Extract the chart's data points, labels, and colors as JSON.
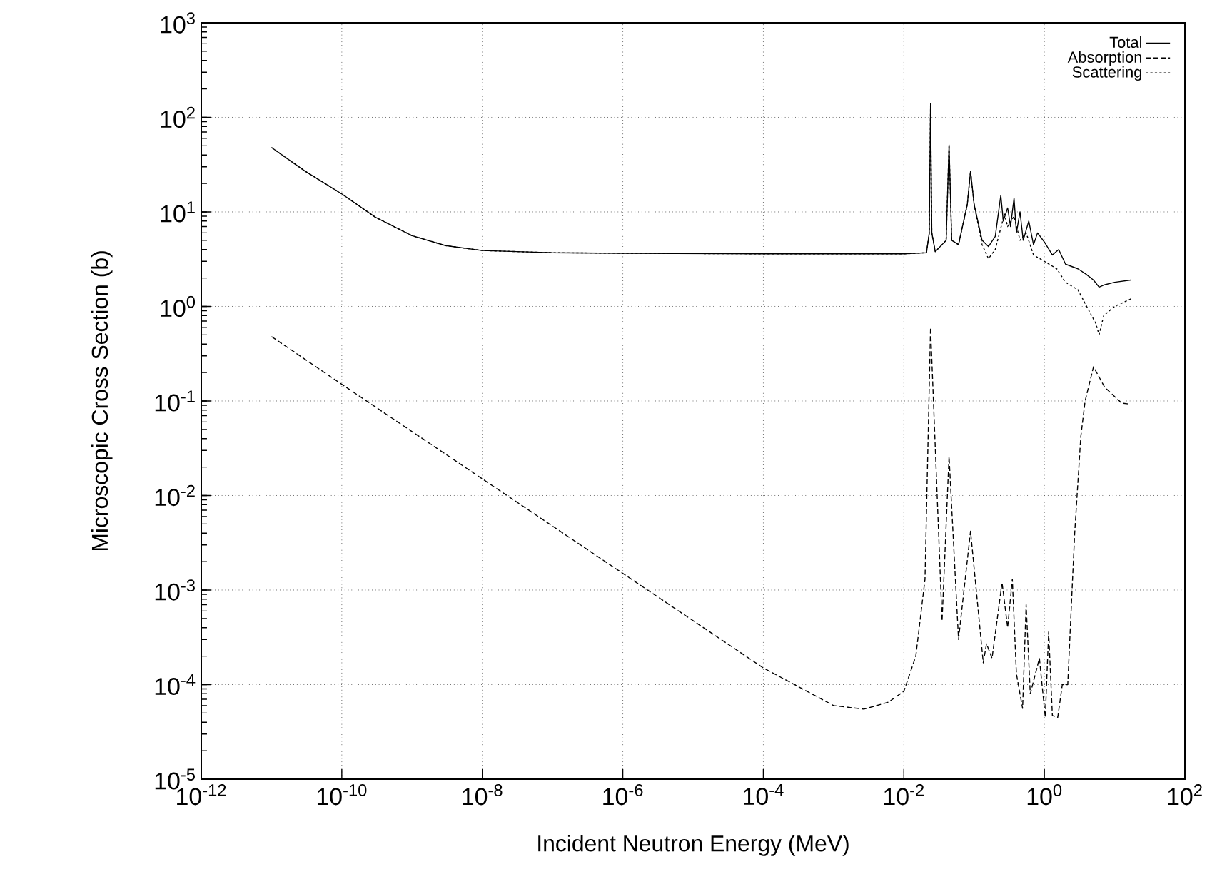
{
  "chart_data": {
    "type": "line",
    "xlabel": "Incident Neutron Energy (MeV)",
    "ylabel": "Microscopic Cross Section (b)",
    "log": "xy",
    "grid": true,
    "legend": "top right",
    "marker": "none",
    "xlim": [
      1e-12,
      100
    ],
    "ylim": [
      1e-05,
      1000
    ],
    "xticks": [
      {
        "value": 1e-12,
        "label": "10$^{-12}$"
      },
      {
        "value": 1e-10,
        "label": "10$^{-10}$"
      },
      {
        "value": 1e-08,
        "label": "10$^{-8}$"
      },
      {
        "value": 1e-06,
        "label": "10$^{-6}$"
      },
      {
        "value": 0.0001,
        "label": "10$^{-4}$"
      },
      {
        "value": 0.01,
        "label": "10$^{-2}$"
      },
      {
        "value": 1,
        "label": "10$^{0}$"
      },
      {
        "value": 100,
        "label": "10$^{2}$"
      }
    ],
    "yticks": [
      {
        "value": 1e-05,
        "label": "10$^{-5}$"
      },
      {
        "value": 0.0001,
        "label": "10$^{-4}$"
      },
      {
        "value": 0.001,
        "label": "10$^{-3}$"
      },
      {
        "value": 0.01,
        "label": "10$^{-2}$"
      },
      {
        "value": 0.1,
        "label": "10$^{-1}$"
      },
      {
        "value": 1,
        "label": "10$^{0}$"
      },
      {
        "value": 10,
        "label": "10$^{1}$"
      },
      {
        "value": 100,
        "label": "10$^{2}$"
      },
      {
        "value": 1000,
        "label": "10$^{3}$"
      }
    ],
    "series": [
      {
        "name": "Total",
        "color": "#000000",
        "line_style": "solid",
        "x": [
          1e-11,
          3e-11,
          1e-10,
          3e-10,
          1e-09,
          3e-09,
          1e-08,
          1e-07,
          1e-06,
          0.0001,
          0.01,
          0.021,
          0.023,
          0.024,
          0.025,
          0.028,
          0.04,
          0.044,
          0.048,
          0.06,
          0.08,
          0.089,
          0.1,
          0.13,
          0.16,
          0.2,
          0.24,
          0.26,
          0.3,
          0.33,
          0.37,
          0.4,
          0.45,
          0.5,
          0.6,
          0.7,
          0.8,
          1.0,
          1.3,
          1.6,
          2.0,
          3.0,
          3.9,
          5,
          6,
          7.3,
          10,
          17
        ],
        "values": [
          48,
          27,
          15.5,
          8.8,
          5.6,
          4.4,
          3.9,
          3.7,
          3.65,
          3.6,
          3.6,
          3.7,
          6,
          140,
          6,
          3.8,
          5,
          51,
          5,
          4.5,
          12,
          27,
          12,
          5,
          4.3,
          5.5,
          15,
          8,
          11,
          7,
          14,
          6,
          10,
          5,
          8,
          4.5,
          6,
          4.8,
          3.5,
          4,
          2.8,
          2.5,
          2.2,
          1.9,
          1.6,
          1.7,
          1.8,
          1.9
        ]
      },
      {
        "name": "Absorption",
        "color": "#000000",
        "line_style": "dashed",
        "x": [
          1e-11,
          1e-10,
          1e-08,
          1e-06,
          0.0001,
          0.001,
          0.0027,
          0.006,
          0.01,
          0.0148,
          0.02,
          0.024,
          0.035,
          0.044,
          0.06,
          0.089,
          0.135,
          0.15,
          0.18,
          0.25,
          0.3,
          0.35,
          0.4,
          0.49,
          0.55,
          0.63,
          0.85,
          1.03,
          1.15,
          1.3,
          1.55,
          1.8,
          2.15,
          2.7,
          3.3,
          3.8,
          5,
          7.2,
          12.6,
          15.8
        ],
        "values": [
          0.48,
          0.15,
          0.015,
          0.0015,
          0.00015,
          6e-05,
          5.5e-05,
          6.5e-05,
          8.5e-05,
          0.0002,
          0.0013,
          0.6,
          0.00047,
          0.026,
          0.0003,
          0.0042,
          0.00017,
          0.00027,
          0.00019,
          0.0012,
          0.0004,
          0.0013,
          0.00013,
          5.6e-05,
          0.0007,
          8e-05,
          0.00019,
          4.5e-05,
          0.00036,
          4.7e-05,
          4.5e-05,
          0.0001,
          0.0001,
          0.004,
          0.042,
          0.1,
          0.23,
          0.14,
          0.095,
          0.093
        ]
      },
      {
        "name": "Scattering",
        "color": "#000000",
        "line_style": "dotted",
        "x": [
          1e-11,
          3e-11,
          1e-10,
          3e-10,
          1e-09,
          3e-09,
          1e-08,
          1e-07,
          1e-06,
          0.0001,
          0.01,
          0.021,
          0.023,
          0.024,
          0.025,
          0.028,
          0.04,
          0.044,
          0.048,
          0.06,
          0.08,
          0.089,
          0.1,
          0.13,
          0.16,
          0.2,
          0.27,
          0.3,
          0.37,
          0.45,
          0.55,
          0.7,
          1.0,
          1.5,
          2,
          3,
          4,
          5.4,
          6,
          7,
          10,
          17
        ],
        "values": [
          48,
          27,
          15.5,
          8.8,
          5.6,
          4.4,
          3.9,
          3.7,
          3.65,
          3.6,
          3.6,
          3.7,
          6,
          139,
          6,
          3.8,
          5,
          51,
          5,
          4.5,
          12,
          27,
          12,
          4.5,
          3.2,
          4,
          9.5,
          7,
          9,
          5,
          6,
          3.5,
          3,
          2.5,
          1.8,
          1.5,
          1,
          0.66,
          0.5,
          0.8,
          1,
          1.2
        ]
      }
    ]
  }
}
